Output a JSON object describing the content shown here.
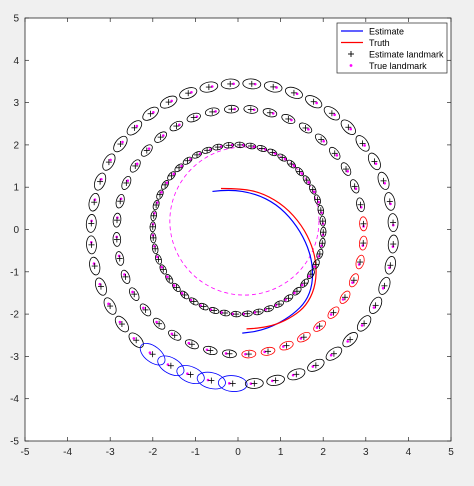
{
  "chart_data": {
    "type": "line",
    "title": "",
    "xlabel": "",
    "ylabel": "",
    "xlim": [
      -5,
      5
    ],
    "ylim": [
      -5,
      5
    ],
    "xticks": [
      -5,
      -4,
      -3,
      -2,
      -1,
      0,
      1,
      2,
      3,
      4,
      5
    ],
    "yticks": [
      -5,
      -4,
      -3,
      -2,
      -1,
      0,
      1,
      2,
      3,
      4,
      5
    ],
    "grid": false,
    "legend_position": "top-right",
    "legend": [
      {
        "label": "Estimate",
        "kind": "line",
        "color": "#0000ff"
      },
      {
        "label": "Truth",
        "kind": "line",
        "color": "#ff0000"
      },
      {
        "label": "Estimate landmark",
        "kind": "plus",
        "color": "#000000"
      },
      {
        "label": "True landmark",
        "kind": "dot",
        "color": "#ff00ff"
      }
    ],
    "series": [
      {
        "name": "Estimate",
        "color": "#0000ff",
        "x": [
          -0.6,
          -0.2,
          0.4,
          0.9,
          1.3,
          1.6,
          1.75,
          1.75,
          1.6,
          1.3,
          0.9,
          0.5,
          0.1
        ],
        "y": [
          0.9,
          0.95,
          0.85,
          0.6,
          0.2,
          -0.3,
          -0.8,
          -1.3,
          -1.7,
          -2.0,
          -2.25,
          -2.4,
          -2.45
        ]
      },
      {
        "name": "Truth",
        "color": "#ff0000",
        "x": [
          -0.4,
          0.1,
          0.6,
          1.1,
          1.5,
          1.75,
          1.85,
          1.8,
          1.6,
          1.3,
          0.9,
          0.5,
          0.2
        ],
        "y": [
          0.97,
          0.97,
          0.85,
          0.55,
          0.1,
          -0.4,
          -0.9,
          -1.4,
          -1.8,
          -2.05,
          -2.25,
          -2.33,
          -2.35
        ]
      }
    ],
    "planned_path": {
      "name": "Truth (planned circle)",
      "color": "#ff00ff",
      "cx": 0.15,
      "cy": 0.2,
      "r": 1.75
    },
    "inner_landmarks": {
      "count": 48,
      "center": [
        0.0,
        0.0
      ],
      "radius": 2.0
    },
    "mid_landmarks": {
      "count": 40,
      "center": [
        0.05,
        -0.05
      ],
      "radius": 2.9
    },
    "outer_landmarks": {
      "count": 44,
      "center": [
        0.1,
        -0.1
      ],
      "radius": 3.55
    },
    "red_ellipse_indices": [
      29,
      30,
      31,
      32,
      33,
      34,
      35,
      36,
      37,
      38,
      39,
      40,
      41,
      42
    ],
    "blue_ellipse_indices": [
      27,
      28,
      29,
      30,
      31
    ]
  }
}
